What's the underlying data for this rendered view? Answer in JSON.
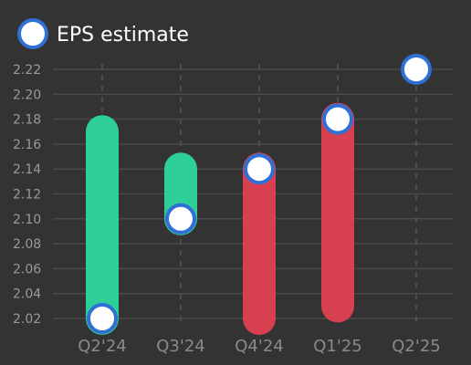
{
  "chart_data": {
    "type": "range-bar-with-markers",
    "legend": {
      "label": "EPS estimate",
      "placement": "top-left"
    },
    "categories": [
      "Q2'24",
      "Q3'24",
      "Q4'24",
      "Q1'25",
      "Q2'25"
    ],
    "ranges": [
      {
        "low": 2.02,
        "high": 2.17,
        "color": "#2ecf96"
      },
      {
        "low": 2.1,
        "high": 2.14,
        "color": "#2ecf96"
      },
      {
        "low": 2.02,
        "high": 2.14,
        "color": "#d9404f"
      },
      {
        "low": 2.03,
        "high": 2.18,
        "color": "#d9404f"
      },
      null
    ],
    "estimates": [
      2.02,
      2.1,
      2.14,
      2.18,
      2.22
    ],
    "yticks": [
      "2.02",
      "2.04",
      "2.06",
      "2.08",
      "2.10",
      "2.12",
      "2.14",
      "2.16",
      "2.18",
      "2.20",
      "2.22"
    ],
    "ylim": [
      2.02,
      2.22
    ],
    "grid": true,
    "marker_fill": "#ffffff",
    "marker_stroke": "#2f6fd6"
  }
}
